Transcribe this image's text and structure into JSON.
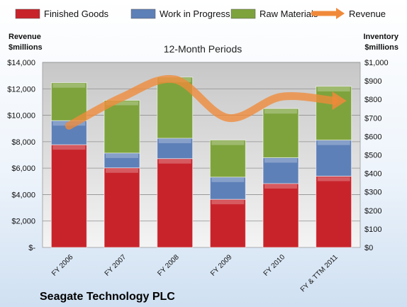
{
  "chart_data": {
    "type": "bar",
    "stacked": true,
    "title": "12-Month Periods",
    "footer_title": "Seagate Technology PLC",
    "left_axis": {
      "title_line1": "Revenue",
      "title_line2": "$millions",
      "range": [
        0,
        14000
      ],
      "ticks": [
        "$-",
        "$2,000",
        "$4,000",
        "$6,000",
        "$8,000",
        "$10,000",
        "$12,000",
        "$14,000"
      ]
    },
    "right_axis": {
      "title_line1": "Inventory",
      "title_line2": "$millions",
      "range": [
        0,
        1000
      ],
      "ticks": [
        "$0",
        "$100",
        "$200",
        "$300",
        "$400",
        "$500",
        "$600",
        "$700",
        "$800",
        "$900",
        "$1,000"
      ]
    },
    "categories": [
      "FY 2006",
      "FY 2007",
      "FY 2008",
      "FY 2009",
      "FY 2010",
      "FY & TTM 2011"
    ],
    "series": [
      {
        "name": "Finished Goods",
        "axis": "right",
        "color": "#c8232b",
        "values": [
          555,
          430,
          480,
          260,
          345,
          385
        ]
      },
      {
        "name": "Work in Progress",
        "axis": "right",
        "color": "#5e80b8",
        "values": [
          130,
          80,
          110,
          120,
          140,
          195
        ]
      },
      {
        "name": "Raw Materials",
        "axis": "right",
        "color": "#7ea33d",
        "values": [
          205,
          285,
          330,
          200,
          265,
          290
        ]
      },
      {
        "name": "Revenue",
        "axis": "left",
        "type": "line",
        "color": "#f08a3a",
        "values": [
          9206,
          11360,
          12708,
          9805,
          11395,
          11100
        ]
      }
    ],
    "grid": true,
    "legend_position": "top"
  }
}
